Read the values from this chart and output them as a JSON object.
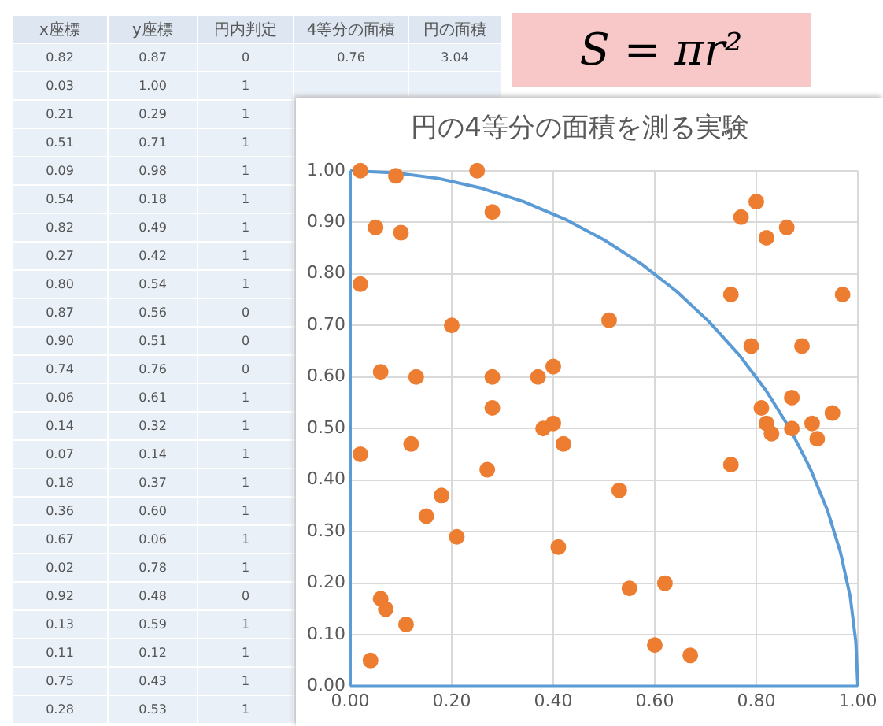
{
  "chart_data": [
    {
      "type": "other",
      "categories": [
        "x座標",
        "y座標",
        "円内判定",
        "4等分の面積",
        "円の面積"
      ],
      "cell_labels": [
        [
          "0.82",
          "0.87",
          "0",
          "0.76",
          "3.04"
        ],
        [
          "0.03",
          "1.00",
          "1",
          null,
          null
        ],
        [
          "0.21",
          "0.29",
          "1",
          null,
          null
        ],
        [
          "0.51",
          "0.71",
          "1",
          null,
          null
        ],
        [
          "0.09",
          "0.98",
          "1",
          null,
          null
        ],
        [
          "0.54",
          "0.18",
          "1",
          null,
          null
        ],
        [
          "0.82",
          "0.49",
          "1",
          null,
          null
        ],
        [
          "0.27",
          "0.42",
          "1",
          null,
          null
        ],
        [
          "0.80",
          "0.54",
          "1",
          null,
          null
        ],
        [
          "0.87",
          "0.56",
          "0",
          null,
          null
        ],
        [
          "0.90",
          "0.51",
          "0",
          null,
          null
        ],
        [
          "0.74",
          "0.76",
          "0",
          null,
          null
        ],
        [
          "0.06",
          "0.61",
          "1",
          null,
          null
        ],
        [
          "0.14",
          "0.32",
          "1",
          null,
          null
        ],
        [
          "0.07",
          "0.14",
          "1",
          null,
          null
        ],
        [
          "0.18",
          "0.37",
          "1",
          null,
          null
        ],
        [
          "0.36",
          "0.60",
          "1",
          null,
          null
        ],
        [
          "0.67",
          "0.06",
          "1",
          null,
          null
        ],
        [
          "0.02",
          "0.78",
          "1",
          null,
          null
        ],
        [
          "0.92",
          "0.48",
          "0",
          null,
          null
        ],
        [
          "0.13",
          "0.59",
          "1",
          null,
          null
        ],
        [
          "0.11",
          "0.12",
          "1",
          null,
          null
        ],
        [
          "0.75",
          "0.43",
          "1",
          null,
          null
        ],
        [
          "0.28",
          "0.53",
          "1",
          null,
          null
        ]
      ]
    },
    {
      "type": "other",
      "title": "S = πr²"
    },
    {
      "type": "scatter",
      "title": "円の4等分の面積を測る実験",
      "marker": "circle",
      "grid": true,
      "xlim": [
        0,
        1
      ],
      "ylim": [
        0,
        1
      ],
      "xticks": [
        {
          "value": 0,
          "label": "0.00"
        },
        {
          "value": 0.2,
          "label": "0.20"
        },
        {
          "value": 0.4,
          "label": "0.40"
        },
        {
          "value": 0.6,
          "label": "0.60"
        },
        {
          "value": 0.8,
          "label": "0.80"
        },
        {
          "value": 1,
          "label": "1.00"
        }
      ],
      "yticks": [
        {
          "value": 0,
          "label": "0.00"
        },
        {
          "value": 0.1,
          "label": "0.10"
        },
        {
          "value": 0.2,
          "label": "0.20"
        },
        {
          "value": 0.3,
          "label": "0.30"
        },
        {
          "value": 0.4,
          "label": "0.40"
        },
        {
          "value": 0.5,
          "label": "0.50"
        },
        {
          "value": 0.6,
          "label": "0.60"
        },
        {
          "value": 0.7,
          "label": "0.70"
        },
        {
          "value": 0.8,
          "label": "0.80"
        },
        {
          "value": 0.9,
          "label": "0.90"
        },
        {
          "value": 1,
          "label": "1.00"
        }
      ],
      "series": [
        {
          "type": "line",
          "marker": "none",
          "color": "#5b9bd5",
          "x": [
            0,
            0
          ],
          "values": [
            0,
            1
          ]
        },
        {
          "type": "line",
          "marker": "none",
          "color": "#5b9bd5",
          "x": [
            0,
            0.087,
            0.174,
            0.259,
            0.342,
            0.423,
            0.5,
            0.574,
            0.643,
            0.707,
            0.766,
            0.819,
            0.866,
            0.906,
            0.94,
            0.966,
            0.985,
            0.996,
            1
          ],
          "values": [
            1,
            0.996,
            0.985,
            0.966,
            0.94,
            0.906,
            0.866,
            0.819,
            0.766,
            0.707,
            0.643,
            0.574,
            0.5,
            0.423,
            0.342,
            0.259,
            0.174,
            0.087,
            0
          ]
        },
        {
          "type": "line",
          "marker": "none",
          "color": "#5b9bd5",
          "x": [
            0,
            1
          ],
          "values": [
            0,
            0
          ]
        },
        {
          "type": "scatter",
          "color": "#ed7d31",
          "x": [
            0.02,
            0.09,
            0.25,
            0.05,
            0.1,
            0.28,
            0.02,
            0.2,
            0.51,
            0.06,
            0.13,
            0.28,
            0.37,
            0.4,
            0.28,
            0.75,
            0.77,
            0.8,
            0.82,
            0.86,
            0.97,
            0.79,
            0.89,
            0.87,
            0.81,
            0.95,
            0.91,
            0.38,
            0.4,
            0.82,
            0.83,
            0.87,
            0.92,
            0.02,
            0.12,
            0.42,
            0.27,
            0.75,
            0.18,
            0.53,
            0.15,
            0.21,
            0.41,
            0.06,
            0.07,
            0.11,
            0.55,
            0.62,
            0.04,
            0.6,
            0.67
          ],
          "values": [
            1.0,
            0.99,
            1.0,
            0.89,
            0.88,
            0.92,
            0.78,
            0.7,
            0.71,
            0.61,
            0.6,
            0.6,
            0.6,
            0.62,
            0.54,
            0.76,
            0.91,
            0.94,
            0.87,
            0.89,
            0.76,
            0.66,
            0.66,
            0.56,
            0.54,
            0.53,
            0.51,
            0.5,
            0.51,
            0.51,
            0.49,
            0.5,
            0.48,
            0.45,
            0.47,
            0.47,
            0.42,
            0.43,
            0.37,
            0.38,
            0.33,
            0.29,
            0.27,
            0.17,
            0.15,
            0.12,
            0.19,
            0.2,
            0.05,
            0.08,
            0.06
          ]
        }
      ]
    }
  ]
}
